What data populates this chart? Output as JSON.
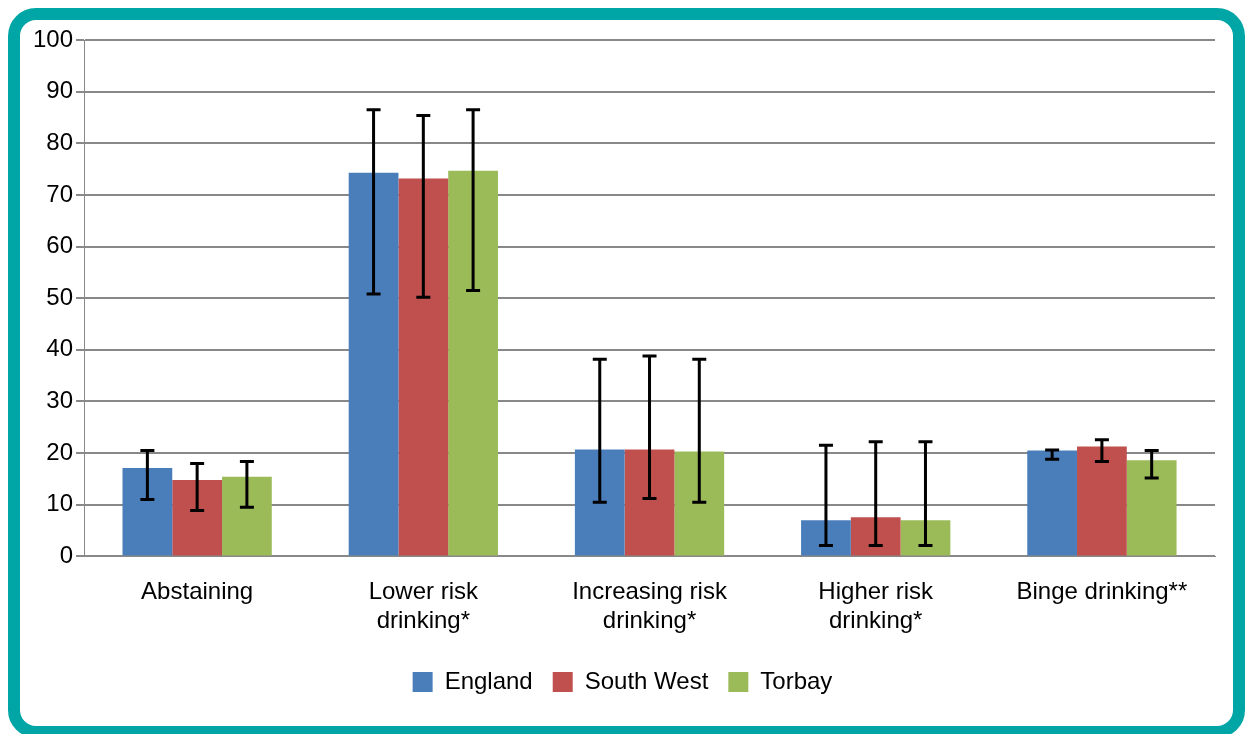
{
  "chart_data": {
    "type": "bar",
    "categories": [
      "Abstaining",
      "Lower risk drinking*",
      "Increasing risk drinking*",
      "Higher risk drinking*",
      "Binge drinking**"
    ],
    "series": [
      {
        "name": "England",
        "color": "#4a7ebb",
        "values": [
          17.1,
          74.3,
          20.7,
          7.0,
          20.5
        ],
        "errors": [
          [
            11.0,
            20.5
          ],
          [
            50.8,
            86.5
          ],
          [
            10.5,
            38.2
          ],
          [
            2.1,
            21.5
          ],
          [
            18.8,
            20.6
          ]
        ]
      },
      {
        "name": "South West",
        "color": "#c0504d",
        "values": [
          14.8,
          73.2,
          20.7,
          7.6,
          21.3
        ],
        "errors": [
          [
            8.9,
            18.0
          ],
          [
            50.2,
            85.4
          ],
          [
            11.2,
            38.8
          ],
          [
            2.1,
            22.2
          ],
          [
            18.4,
            22.6
          ]
        ]
      },
      {
        "name": "Torbay",
        "color": "#9bbb59",
        "values": [
          15.4,
          74.7,
          20.3,
          7.0,
          18.6
        ],
        "errors": [
          [
            9.5,
            18.4
          ],
          [
            51.5,
            86.5
          ],
          [
            10.5,
            38.2
          ],
          [
            2.1,
            22.2
          ],
          [
            15.2,
            20.5
          ]
        ]
      }
    ],
    "ylim": [
      0,
      100
    ],
    "yticks": [
      0,
      10,
      20,
      30,
      40,
      50,
      60,
      70,
      80,
      90,
      100
    ],
    "grid": "y",
    "legend": "bottom"
  }
}
